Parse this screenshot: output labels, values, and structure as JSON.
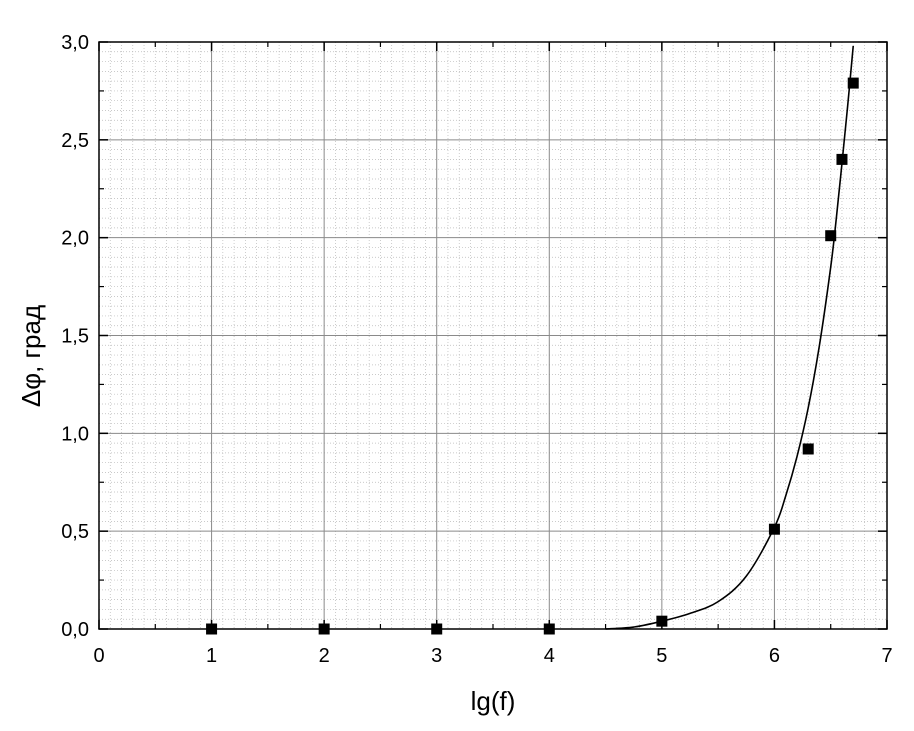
{
  "chart_data": {
    "type": "scatter",
    "title": "",
    "xlabel": "lg(f)",
    "ylabel": "Δφ, град",
    "xlim": [
      0,
      7
    ],
    "ylim": [
      0.0,
      3.0
    ],
    "x_ticks": [
      "0",
      "1",
      "2",
      "3",
      "4",
      "5",
      "6",
      "7"
    ],
    "y_ticks": [
      "0,0",
      "0,5",
      "1,0",
      "1,5",
      "2,0",
      "2,5",
      "3,0"
    ],
    "grid": true,
    "legend": "none",
    "series": [
      {
        "marker": "square",
        "color": "#000000",
        "x": [
          1,
          2,
          3,
          4,
          5,
          6,
          6.3,
          6.5,
          6.6,
          6.7
        ],
        "y": [
          0.0,
          0.0,
          0.0,
          0.0,
          0.04,
          0.51,
          0.92,
          2.01,
          2.4,
          2.79
        ]
      }
    ],
    "fit_curve": {
      "color": "#000000",
      "x": [
        4.5,
        4.75,
        5.0,
        5.25,
        5.5,
        5.75,
        6.0,
        6.1,
        6.2,
        6.3,
        6.4,
        6.5,
        6.55,
        6.6,
        6.65,
        6.7
      ],
      "y": [
        0.0,
        0.01,
        0.04,
        0.08,
        0.14,
        0.27,
        0.52,
        0.68,
        0.88,
        1.13,
        1.45,
        1.85,
        2.1,
        2.38,
        2.67,
        2.98
      ]
    }
  }
}
